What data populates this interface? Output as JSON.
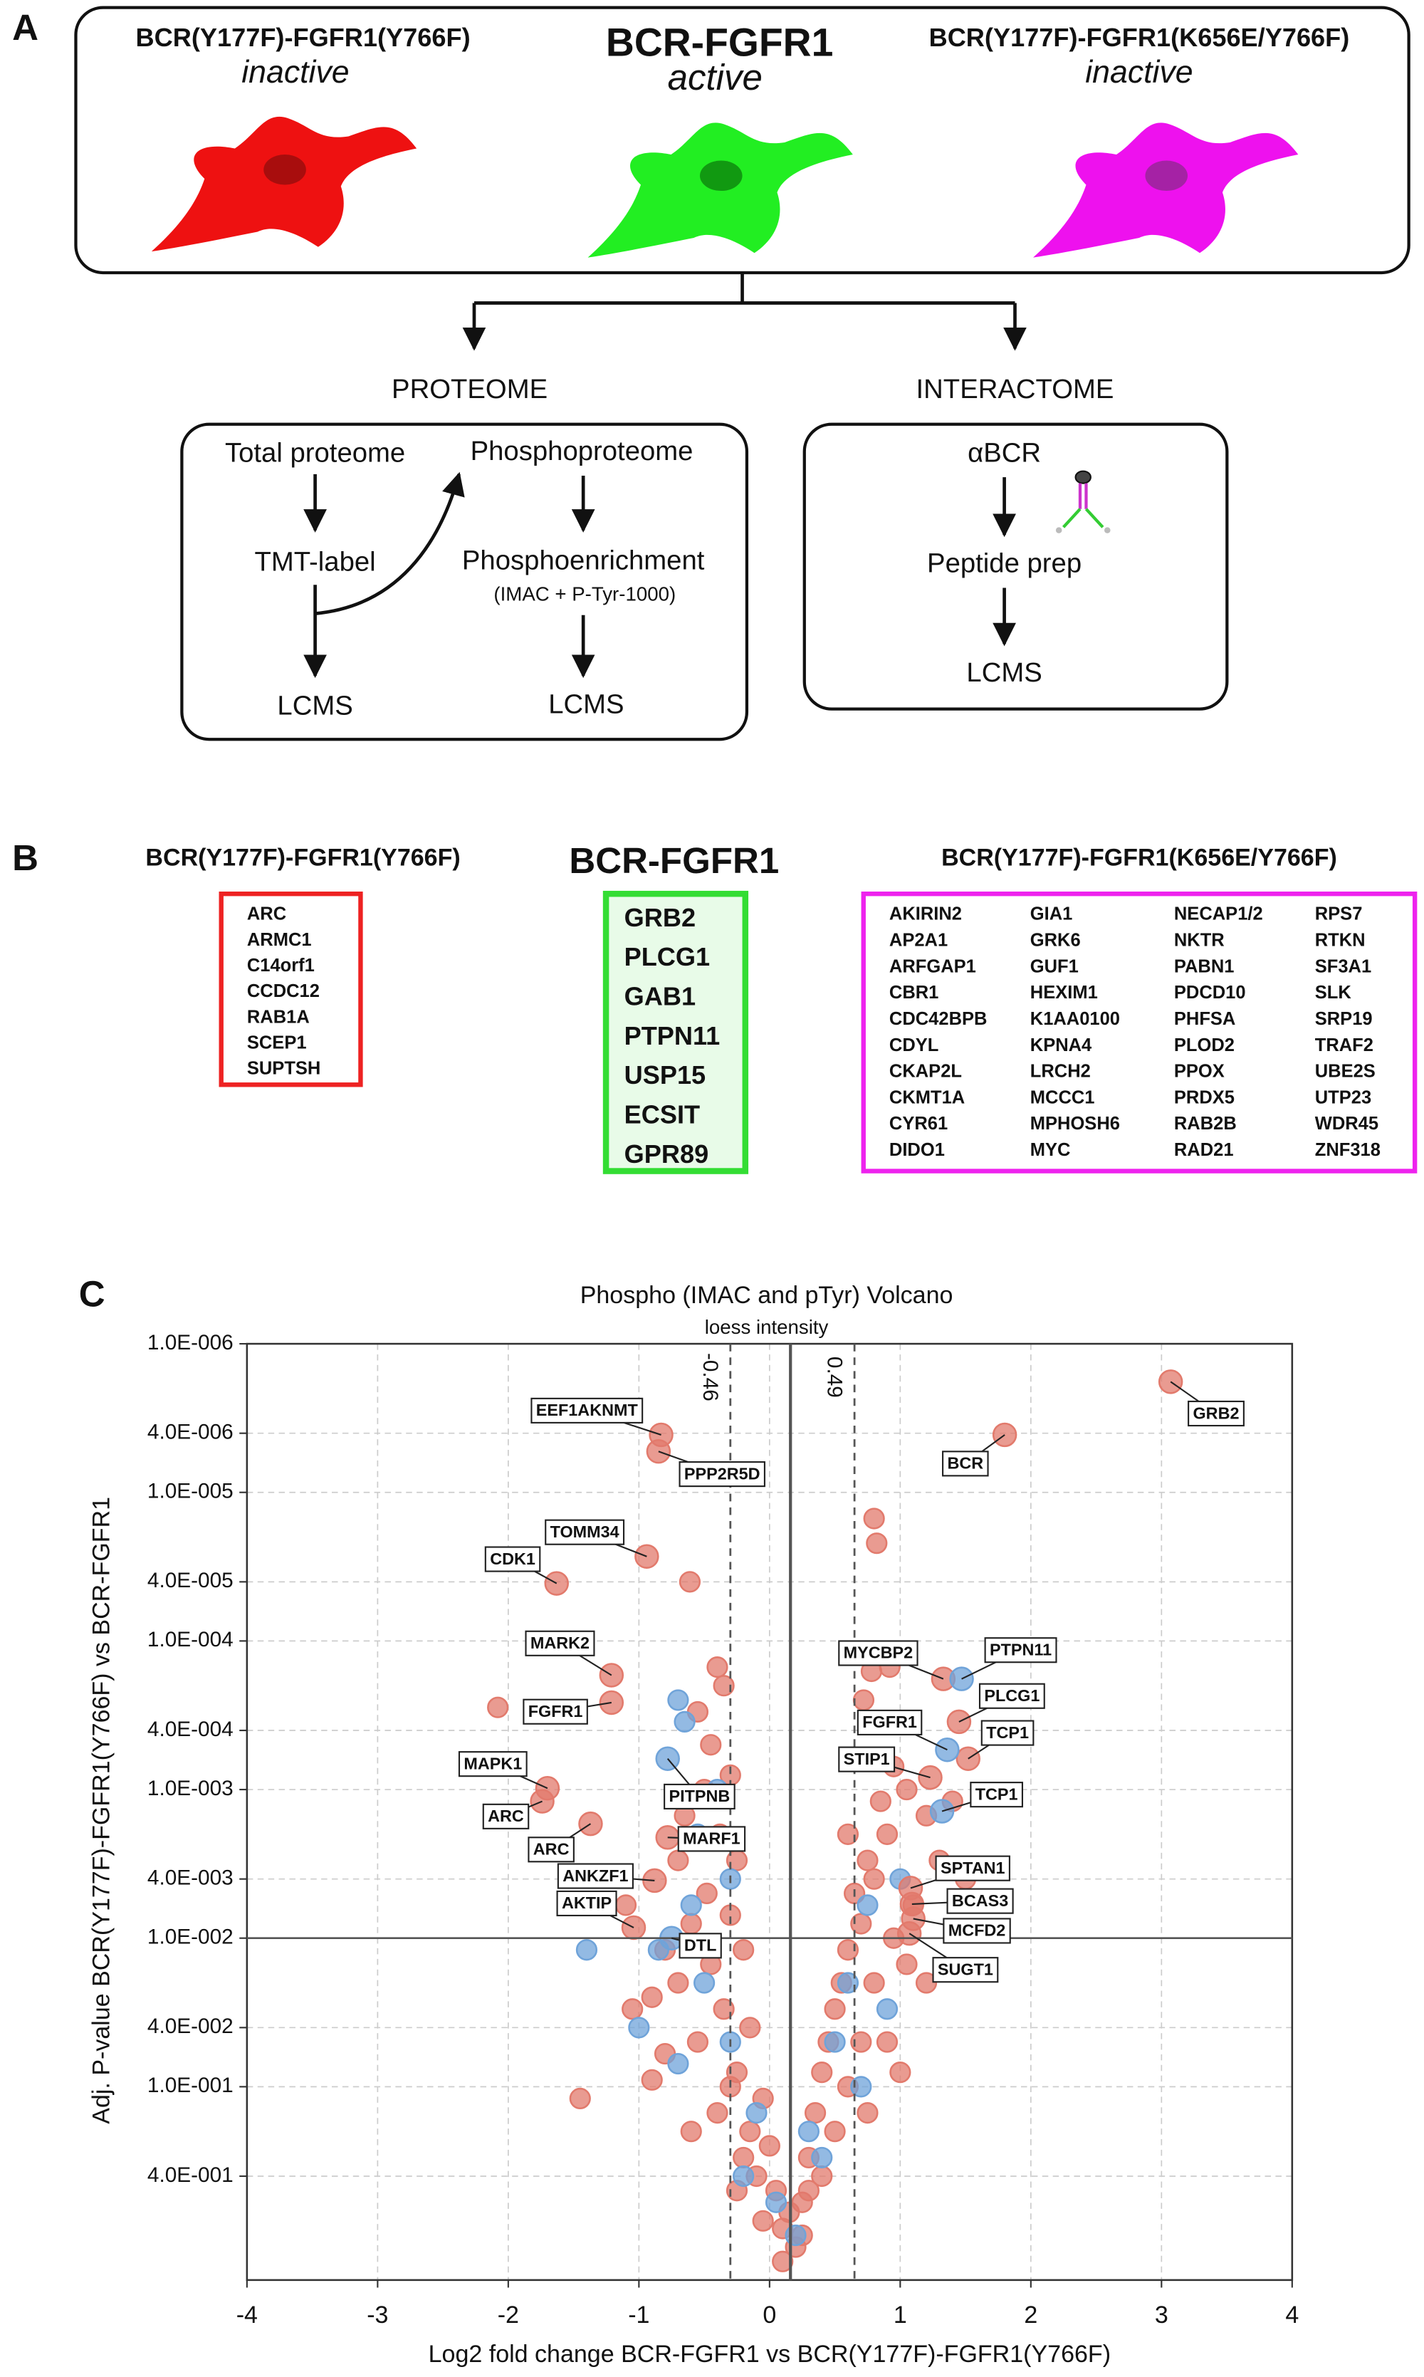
{
  "panel_a": {
    "label": "A",
    "conditions": [
      {
        "name": "BCR(Y177F)-FGFR1(Y766F)",
        "state": "inactive"
      },
      {
        "name": "BCR-FGFR1",
        "state": "active"
      },
      {
        "name": "BCR(Y177F)-FGFR1(K656E/Y766F)",
        "state": "inactive"
      }
    ],
    "proteome": {
      "title": "PROTEOME",
      "total": "Total proteome",
      "phospho": "Phosphoproteome",
      "tmt": "TMT-label",
      "enrich": "Phosphoenrichment",
      "enrich_note": "(IMAC + P-Tyr-1000)",
      "lcms_1": "LCMS",
      "lcms_2": "LCMS"
    },
    "interactome": {
      "title": "INTERACTOME",
      "ip": "αBCR",
      "prep": "Peptide prep",
      "lcms": "LCMS"
    }
  },
  "panel_b": {
    "label": "B",
    "lists": [
      {
        "title": "BCR(Y177F)-FGFR1(Y766F)",
        "items": [
          "ARC",
          "ARMC1",
          "C14orf1",
          "CCDC12",
          "RAB1A",
          "SCEP1",
          "SUPTSH"
        ]
      },
      {
        "title": "BCR-FGFR1",
        "items": [
          "GRB2",
          "PLCG1",
          "GAB1",
          "PTPN11",
          "USP15",
          "ECSIT",
          "GPR89"
        ]
      },
      {
        "title": "BCR(Y177F)-FGFR1(K656E/Y766F)",
        "items": [
          "AKIRIN2",
          "AP2A1",
          "ARFGAP1",
          "CBR1",
          "CDC42BPB",
          "CDYL",
          "CKAP2L",
          "CKMT1A",
          "CYR61",
          "DIDO1",
          "GIA1",
          "GRK6",
          "GUF1",
          "HEXIM1",
          "K1AA0100",
          "KPNA4",
          "LRCH2",
          "MCCC1",
          "MPHOSH6",
          "MYC",
          "NECAP1/2",
          "NKTR",
          "PABN1",
          "PDCD10",
          "PHFSA",
          "PLOD2",
          "PPOX",
          "PRDX5",
          "RAB2B",
          "RAD21",
          "RPS7",
          "RTKN",
          "SF3A1",
          "SLK",
          "SRP19",
          "TRAF2",
          "UBE2S",
          "UTP23",
          "WDR45",
          "ZNF318"
        ]
      }
    ]
  },
  "chart_data": {
    "type": "scatter",
    "panel_label": "C",
    "title": "Phospho (IMAC and pTyr) Volcano",
    "subtitle": "loess intensity",
    "xlabel": "Log2 fold change BCR-FGFR1 vs BCR(Y177F)-FGFR1(Y766F)",
    "ylabel": "Adj. P-value BCR(Y177F)-FGFR1(Y766F) vs BCR-FGFR1",
    "xlim": [
      -4,
      4
    ],
    "xticks": [
      -4,
      -3,
      -2,
      -1,
      0,
      1,
      2,
      3,
      4
    ],
    "ylim": [
      2,
      1e-06
    ],
    "y_log": true,
    "yticks": [
      {
        "value": 1e-06,
        "label": "1.0E-006"
      },
      {
        "value": 4e-06,
        "label": "4.0E-006"
      },
      {
        "value": 1e-05,
        "label": "1.0E-005"
      },
      {
        "value": 4e-05,
        "label": "4.0E-005"
      },
      {
        "value": 0.0001,
        "label": "1.0E-004"
      },
      {
        "value": 0.0004,
        "label": "4.0E-004"
      },
      {
        "value": 0.001,
        "label": "1.0E-003"
      },
      {
        "value": 0.004,
        "label": "4.0E-003"
      },
      {
        "value": 0.01,
        "label": "1.0E-002"
      },
      {
        "value": 0.04,
        "label": "4.0E-002"
      },
      {
        "value": 0.1,
        "label": "1.0E-001"
      },
      {
        "value": 0.4,
        "label": "4.0E-001"
      }
    ],
    "grid": true,
    "center_line": 0.16,
    "threshold_lines": [
      -0.46,
      0.49
    ],
    "hline": 0.01,
    "series": [
      {
        "color": "#e27a6c",
        "x": [
          3.07,
          1.8,
          -0.83,
          -0.85,
          -0.94,
          -1.63,
          -1.21,
          -1.21,
          -1.7,
          -1.74,
          -1.37,
          -0.78,
          -0.88,
          -1.04,
          1.33,
          1.45,
          1.52,
          1.23,
          1.08,
          1.09,
          1.1,
          1.07
        ],
        "y": [
          1.8e-06,
          4.1e-06,
          4.1e-06,
          5.3e-06,
          2.7e-05,
          4.1e-05,
          0.00017,
          0.00026,
          0.00098,
          0.0012,
          0.0017,
          0.0021,
          0.0041,
          0.0085,
          0.00018,
          0.00035,
          0.00062,
          0.00083,
          0.0046,
          0.0059,
          0.0074,
          0.0093
        ],
        "labels": [
          "GRB2",
          "BCR",
          "EEF1AKNMT",
          "PPP2R5D",
          "TOMM34",
          "CDK1",
          "MARK2",
          "FGFR1",
          "MAPK1",
          "ARC",
          "ARC",
          "MARF1",
          "ANKZF1",
          "AKTIP",
          "MYCBP2",
          "PLCG1",
          "TCP1",
          "STIP1",
          "SPTAN1",
          "BCAS3",
          "MCFD2",
          "SUGT1"
        ]
      },
      {
        "color": "#e27a6c",
        "x": [
          -2.08,
          -0.61,
          0.8,
          0.82,
          0.78,
          0.92,
          0.72,
          -0.4,
          -0.35,
          -0.55,
          -0.45,
          -0.3,
          -0.5,
          -0.65,
          -0.38,
          -0.25,
          -0.7,
          -0.48,
          -0.3,
          -0.6,
          -0.2,
          -0.45,
          -0.7,
          -0.35,
          -0.15,
          -0.55,
          -0.25,
          -0.9,
          -0.05,
          -0.4,
          0,
          -0.2,
          0.05,
          0.1,
          0.2,
          0.25,
          0.3,
          0.35,
          0.4,
          0.45,
          0.5,
          0.55,
          0.6,
          0.7,
          0.65,
          0.8,
          0.75,
          0.9,
          0.6,
          0.85,
          1.05,
          0.95,
          1.1,
          0.95,
          0.8,
          0.7,
          0.6,
          0.9,
          1.05,
          1.3,
          1.2,
          1.4,
          0.5,
          0.15,
          -0.1,
          -0.6,
          -1.45,
          -1.05,
          -1.1,
          -0.8,
          -0.9,
          1.2,
          1,
          0.75,
          0.3,
          -0.15,
          -0.3,
          -0.8,
          1.5,
          0.1,
          0.25,
          -0.05,
          0.4,
          -0.25
        ],
        "y": [
          0.00028,
          4e-05,
          1.5e-05,
          2.2e-05,
          0.00016,
          0.00015,
          0.00025,
          0.00015,
          0.0002,
          0.0003,
          0.0005,
          0.0008,
          0.001,
          0.0015,
          0.002,
          0.003,
          0.003,
          0.005,
          0.007,
          0.008,
          0.012,
          0.015,
          0.02,
          0.03,
          0.04,
          0.05,
          0.08,
          0.09,
          0.12,
          0.15,
          0.25,
          0.3,
          0.5,
          0.9,
          1.2,
          0.6,
          0.3,
          0.15,
          0.08,
          0.05,
          0.03,
          0.02,
          0.012,
          0.008,
          0.005,
          0.004,
          0.003,
          0.002,
          0.002,
          0.0012,
          0.001,
          0.0007,
          0.006,
          0.01,
          0.02,
          0.05,
          0.1,
          0.05,
          0.015,
          0.003,
          0.0015,
          0.0012,
          0.2,
          0.7,
          0.4,
          0.2,
          0.12,
          0.03,
          0.006,
          0.012,
          0.025,
          0.02,
          0.08,
          0.15,
          0.5,
          0.2,
          0.1,
          0.06,
          0.004,
          1.5,
          1.0,
          0.8,
          0.4,
          0.5
        ]
      },
      {
        "color": "#6fa3d9",
        "x": [
          -0.78,
          -0.75,
          1.47,
          1.36,
          1.32
        ],
        "y": [
          0.00062,
          0.01,
          0.00018,
          0.00054,
          0.0014
        ],
        "labels": [
          "PITPNB",
          "DTL",
          "PTPN11",
          "FGFR1",
          "TCP1"
        ]
      },
      {
        "color": "#6fa3d9",
        "x": [
          -0.7,
          -0.65,
          -0.4,
          -0.55,
          -0.3,
          -0.6,
          -0.85,
          -0.5,
          -0.3,
          -0.7,
          -0.1,
          0.05,
          0.3,
          0.5,
          0.6,
          0.75,
          0.9,
          0.4,
          0.7,
          -1.4,
          -1,
          0.2,
          1,
          -0.2
        ],
        "y": [
          0.00025,
          0.00035,
          0.001,
          0.002,
          0.004,
          0.006,
          0.012,
          0.02,
          0.05,
          0.07,
          0.15,
          0.6,
          0.2,
          0.05,
          0.02,
          0.006,
          0.03,
          0.3,
          0.1,
          0.012,
          0.04,
          1,
          0.004,
          0.4
        ]
      }
    ]
  }
}
